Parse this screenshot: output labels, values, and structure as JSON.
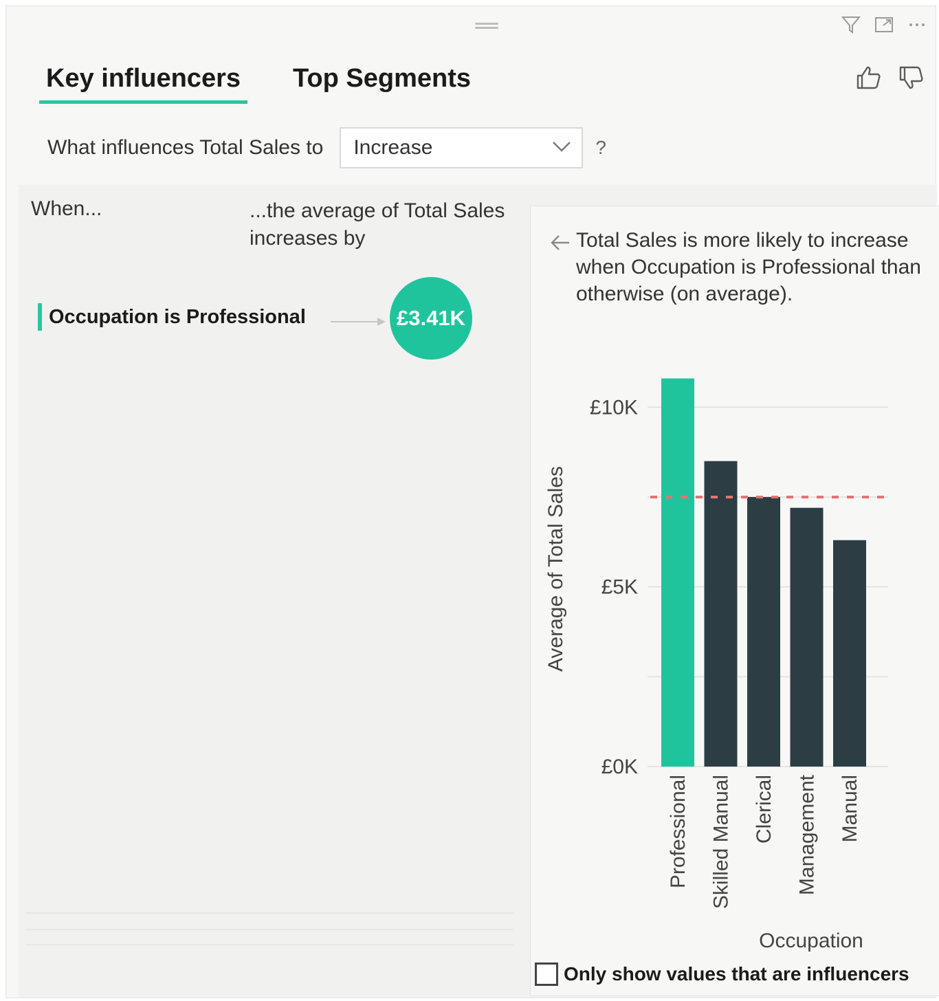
{
  "tabs": [
    {
      "label": "Key influencers",
      "active": true
    },
    {
      "label": "Top Segments",
      "active": false
    }
  ],
  "header_icons": [
    "filter-icon",
    "focus-mode-icon",
    "more-options-icon"
  ],
  "feedback_icons": [
    "thumbs-up-icon",
    "thumbs-down-icon"
  ],
  "question": {
    "label": "What influences Total Sales to",
    "selected": "Increase",
    "help": "?"
  },
  "columns": {
    "when": "When...",
    "average": "...the average of Total Sales increases by"
  },
  "influencer": {
    "label": "Occupation is Professional",
    "value": "£3.41K"
  },
  "detail": {
    "description": "Total Sales is more likely to increase when Occupation is Professional than otherwise (on average)."
  },
  "chart_data": {
    "type": "bar",
    "categories": [
      "Professional",
      "Skilled Manual",
      "Clerical",
      "Management",
      "Manual"
    ],
    "values": [
      10.8,
      8.5,
      7.5,
      7.2,
      6.3
    ],
    "highlight": "Professional",
    "average_line": 7.5,
    "ylabel": "Average of Total Sales",
    "xlabel": "Occupation",
    "yticks": [
      {
        "value": 0,
        "label": "£0K"
      },
      {
        "value": 5,
        "label": "£5K"
      },
      {
        "value": 10,
        "label": "£10K"
      }
    ],
    "ylim": [
      0,
      11
    ],
    "colors": {
      "highlight": "#1fc49d",
      "default": "#2c3e44",
      "average_line": "#e57373",
      "grid": "#e3e3e1"
    }
  },
  "only_show_label": "Only show values that are influencers"
}
